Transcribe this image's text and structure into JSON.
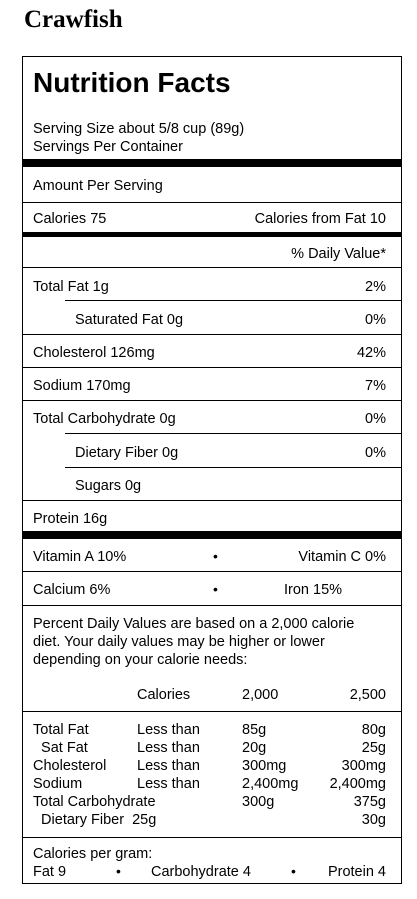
{
  "food_name": "Crawfish",
  "label": {
    "title": "Nutrition Facts",
    "serving_size": "Serving Size about 5/8 cup (89g)",
    "servings_per_container": "Servings Per Container",
    "amount_per_serving": "Amount Per Serving",
    "calories": "Calories 75",
    "calories_from_fat": "Calories from Fat  10",
    "daily_value_header": "% Daily Value*",
    "nutrients": [
      {
        "name": "Total Fat 1g",
        "dv": "2%"
      },
      {
        "name": "Saturated Fat 0g",
        "dv": "0%"
      },
      {
        "name": "Cholesterol 126mg",
        "dv": "42%"
      },
      {
        "name": "Sodium 170mg",
        "dv": "7%"
      },
      {
        "name": "Total Carbohydrate 0g",
        "dv": "0%"
      },
      {
        "name": "Dietary Fiber 0g",
        "dv": "0%"
      },
      {
        "name": "Sugars 0g",
        "dv": ""
      },
      {
        "name": "Protein 16g",
        "dv": ""
      }
    ],
    "vitamin_a": "Vitamin A 10%",
    "vitamin_c": "Vitamin C 0%",
    "calcium": "Calcium 6%",
    "iron": "Iron 15%",
    "bullet": "•",
    "footnote_lines": [
      "Percent Daily Values are based on a 2,000 calorie",
      "diet.  Your daily values may be higher or lower",
      "depending on your calorie needs:"
    ],
    "footnote_header": {
      "calories": "Calories",
      "c2000": "2,000",
      "c2500": "2,500"
    },
    "footnote_rows": [
      {
        "name": "Total Fat",
        "cond": "Less than",
        "v1": "85g",
        "v2": "80g"
      },
      {
        "name": "  Sat Fat",
        "cond": "Less than",
        "v1": "20g",
        "v2": "25g"
      },
      {
        "name": "Cholesterol",
        "cond": "Less than",
        "v1": "300mg",
        "v2": "300mg"
      },
      {
        "name": "Sodium",
        "cond": "Less than",
        "v1": "2,400mg",
        "v2": "2,400mg"
      },
      {
        "name": "Total Carbohydrate",
        "cond": "",
        "v1": "300g",
        "v2": "375g"
      },
      {
        "name": "  Dietary Fiber  25g",
        "cond": "",
        "v1": "",
        "v2": "30g"
      }
    ],
    "calories_per_gram": "Calories per gram:",
    "per_gram": {
      "fat": "Fat 9",
      "carb": "Carbohydrate 4",
      "protein": "Protein 4"
    }
  }
}
